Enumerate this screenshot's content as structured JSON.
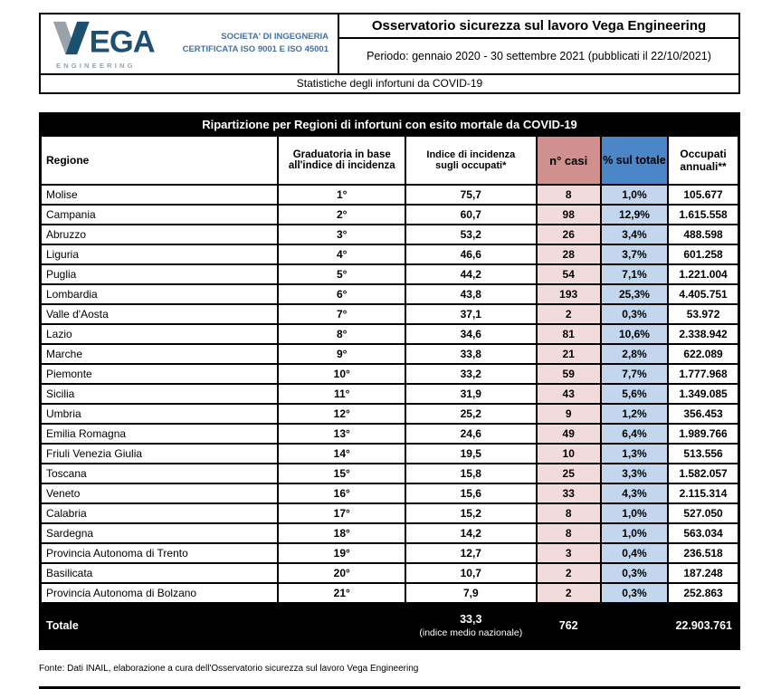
{
  "header": {
    "logo_text": "EGA",
    "logo_sub": "ENGINEERING",
    "cert_line1": "SOCIETA' DI INGEGNERIA",
    "cert_line2": "CERTIFICATA ISO 9001 E ISO 45001",
    "title": "Osservatorio sicurezza sul lavoro Vega Engineering",
    "period": "Periodo: gennaio 2020 - 30 settembre 2021 (pubblicati il 22/10/2021)",
    "subtitle": "Statistiche degli infortuni da COVID-19"
  },
  "table": {
    "title": "Ripartizione per Regioni di infortuni con esito mortale da COVID-19",
    "columns": [
      "Regione",
      "Graduatoria in base all'indice di incidenza",
      "Indice di incidenza sugli occupati*",
      "n° casi",
      "% sul totale",
      "Occupati annuali**"
    ],
    "rows": [
      [
        "Molise",
        "1°",
        "75,7",
        "8",
        "1,0%",
        "105.677"
      ],
      [
        "Campania",
        "2°",
        "60,7",
        "98",
        "12,9%",
        "1.615.558"
      ],
      [
        "Abruzzo",
        "3°",
        "53,2",
        "26",
        "3,4%",
        "488.598"
      ],
      [
        "Liguria",
        "4°",
        "46,6",
        "28",
        "3,7%",
        "601.258"
      ],
      [
        "Puglia",
        "5°",
        "44,2",
        "54",
        "7,1%",
        "1.221.004"
      ],
      [
        "Lombardia",
        "6°",
        "43,8",
        "193",
        "25,3%",
        "4.405.751"
      ],
      [
        "Valle d'Aosta",
        "7°",
        "37,1",
        "2",
        "0,3%",
        "53.972"
      ],
      [
        "Lazio",
        "8°",
        "34,6",
        "81",
        "10,6%",
        "2.338.942"
      ],
      [
        "Marche",
        "9°",
        "33,8",
        "21",
        "2,8%",
        "622.089"
      ],
      [
        "Piemonte",
        "10°",
        "33,2",
        "59",
        "7,7%",
        "1.777.968"
      ],
      [
        "Sicilia",
        "11°",
        "31,9",
        "43",
        "5,6%",
        "1.349.085"
      ],
      [
        "Umbria",
        "12°",
        "25,2",
        "9",
        "1,2%",
        "356.453"
      ],
      [
        "Emilia Romagna",
        "13°",
        "24,6",
        "49",
        "6,4%",
        "1.989.766"
      ],
      [
        "Friuli Venezia Giulia",
        "14°",
        "19,5",
        "10",
        "1,3%",
        "513.556"
      ],
      [
        "Toscana",
        "15°",
        "15,8",
        "25",
        "3,3%",
        "1.582.057"
      ],
      [
        "Veneto",
        "16°",
        "15,6",
        "33",
        "4,3%",
        "2.115.314"
      ],
      [
        "Calabria",
        "17°",
        "15,2",
        "8",
        "1,0%",
        "527.050"
      ],
      [
        "Sardegna",
        "18°",
        "14,2",
        "8",
        "1,0%",
        "563.034"
      ],
      [
        "Provincia Autonoma di Trento",
        "19°",
        "12,7",
        "3",
        "0,4%",
        "236.518"
      ],
      [
        "Basilicata",
        "20°",
        "10,7",
        "2",
        "0,3%",
        "187.248"
      ],
      [
        "Provincia Autonoma di Bolzano",
        "21°",
        "7,9",
        "2",
        "0,3%",
        "252.863"
      ]
    ],
    "total": {
      "label": "Totale",
      "index": "33,3",
      "index_note": "(indice medio nazionale)",
      "cases": "762",
      "occupati": "22.903.761"
    }
  },
  "footer": {
    "source": "Fonte: Dati INAIL, elaborazione a cura dell'Osservatorio sicurezza sul lavoro Vega Engineering"
  },
  "colors": {
    "logo_navy": "#1d4f71",
    "logo_gray": "#97a2aa",
    "cert_blue": "#4470a8",
    "cases_header_bg": "#d0908e",
    "cases_cell_bg": "#f2dcdb",
    "pct_header_bg": "#4a86c8",
    "pct_cell_bg": "#c2d6ee",
    "title_bar_bg": "#000000"
  }
}
